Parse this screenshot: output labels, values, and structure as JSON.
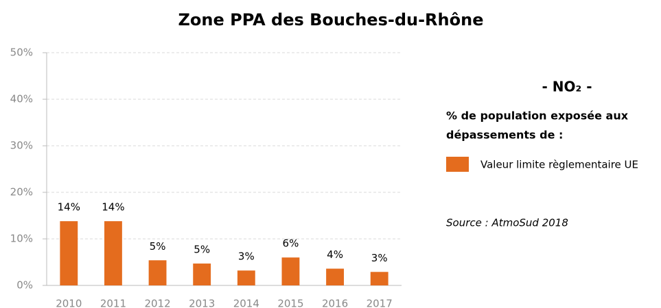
{
  "chart_data": {
    "type": "bar",
    "title": "Zone PPA des Bouches-du-Rhône",
    "pollutant": "- NO₂ -",
    "legend_title": [
      "% de population exposée aux",
      "dépassements de :"
    ],
    "source": "Source : AtmoSud 2018",
    "categories": [
      "2010",
      "2011",
      "2012",
      "2013",
      "2014",
      "2015",
      "2016",
      "2017"
    ],
    "series": [
      {
        "name": "Valeur limite règlementaire UE",
        "color": "#e46c1e",
        "values": [
          13.8,
          13.8,
          5.4,
          4.7,
          3.2,
          6.0,
          3.6,
          2.9
        ],
        "value_labels": [
          "14%",
          "14%",
          "5%",
          "5%",
          "3%",
          "6%",
          "4%",
          "3%"
        ]
      }
    ],
    "ylim": [
      0,
      50
    ],
    "yticks": [
      {
        "value": 0,
        "label": "0%"
      },
      {
        "value": 10,
        "label": "10%"
      },
      {
        "value": 20,
        "label": "20%"
      },
      {
        "value": 30,
        "label": "30%"
      },
      {
        "value": 40,
        "label": "40%"
      },
      {
        "value": 50,
        "label": "50%"
      }
    ],
    "grid": true
  }
}
